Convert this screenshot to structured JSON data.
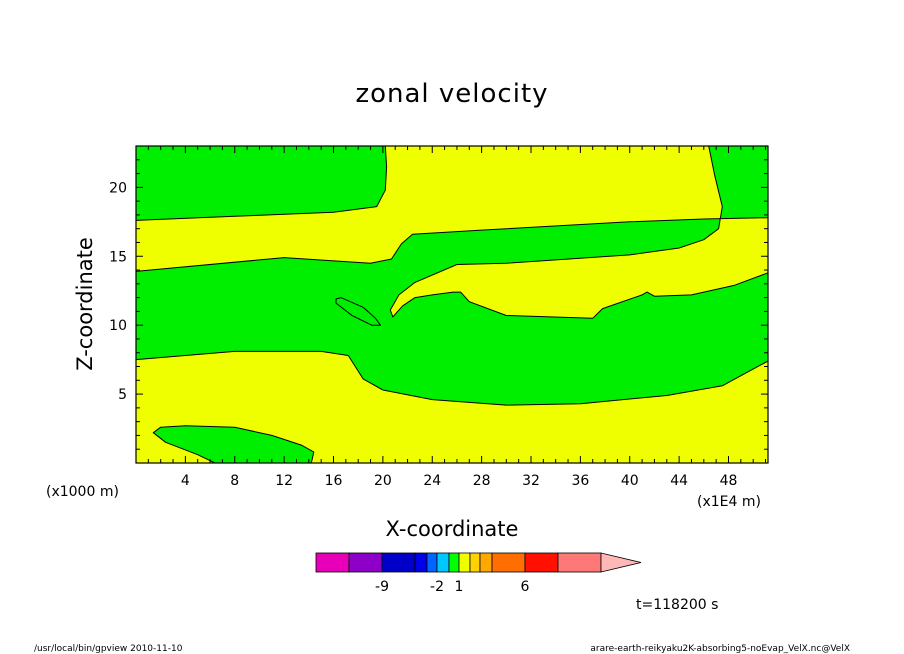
{
  "chart_data": {
    "type": "contour",
    "title": "zonal velocity",
    "xlabel": "X-coordinate",
    "ylabel": "Z-coordinate",
    "x_unit_label": "(x1E4 m)",
    "y_unit_label": "(x1000 m)",
    "xlim": [
      0,
      51.2
    ],
    "ylim": [
      0,
      23
    ],
    "x_ticks": [
      4,
      8,
      12,
      16,
      20,
      24,
      28,
      32,
      36,
      40,
      44,
      48
    ],
    "y_ticks": [
      5,
      10,
      15,
      20
    ],
    "time_label": "t=118200 s",
    "fill_colors": {
      "positive": "#f0ff00",
      "negative": "#00ee00"
    },
    "regions": [
      {
        "value_class": "negative",
        "points": [
          [
            0,
            23
          ],
          [
            20.2,
            23
          ],
          [
            20.3,
            21.5
          ],
          [
            20.2,
            19.8
          ],
          [
            19.5,
            18.6
          ],
          [
            16,
            18.2
          ],
          [
            8,
            17.9
          ],
          [
            0,
            17.6
          ]
        ]
      },
      {
        "value_class": "negative",
        "points": [
          [
            46.4,
            23
          ],
          [
            51.2,
            23
          ],
          [
            51.2,
            17.8
          ],
          [
            46,
            17.7
          ],
          [
            40,
            17.5
          ],
          [
            28,
            16.9
          ],
          [
            22.4,
            16.6
          ],
          [
            21.5,
            15.9
          ],
          [
            20.7,
            14.8
          ],
          [
            19,
            14.5
          ],
          [
            12,
            14.9
          ],
          [
            0,
            13.9
          ],
          [
            0,
            7.5
          ],
          [
            8,
            8.1
          ],
          [
            15,
            8.1
          ],
          [
            17.2,
            7.8
          ],
          [
            18.4,
            6.1
          ],
          [
            20,
            5.3
          ],
          [
            24,
            4.6
          ],
          [
            30,
            4.2
          ],
          [
            36,
            4.3
          ],
          [
            43,
            4.9
          ],
          [
            47.5,
            5.6
          ],
          [
            51.2,
            7.4
          ],
          [
            51.2,
            13.8
          ],
          [
            48.5,
            12.9
          ],
          [
            45,
            12.2
          ],
          [
            42,
            12.1
          ],
          [
            41.4,
            12.4
          ],
          [
            41,
            12.2
          ],
          [
            37.8,
            11.2
          ],
          [
            37,
            10.5
          ],
          [
            30,
            10.7
          ],
          [
            27,
            11.7
          ],
          [
            26.3,
            12.4
          ],
          [
            25.7,
            12.4
          ],
          [
            24,
            12.2
          ],
          [
            22.6,
            12
          ],
          [
            21.6,
            11.4
          ],
          [
            20.8,
            10.6
          ],
          [
            20.6,
            11.1
          ],
          [
            21.3,
            12.2
          ],
          [
            22.6,
            13.1
          ],
          [
            26,
            14.4
          ],
          [
            30,
            14.5
          ],
          [
            40,
            15.1
          ],
          [
            44,
            15.6
          ],
          [
            46,
            16.2
          ],
          [
            47.2,
            17
          ],
          [
            47.5,
            18.6
          ],
          [
            46.9,
            20.8
          ]
        ]
      },
      {
        "value_class": "negative",
        "points": [
          [
            16.2,
            11.9
          ],
          [
            16.6,
            12
          ],
          [
            18.4,
            11.3
          ],
          [
            19.4,
            10.5
          ],
          [
            19.8,
            10
          ],
          [
            19.1,
            10
          ],
          [
            17.5,
            10.7
          ],
          [
            16.2,
            11.6
          ]
        ]
      },
      {
        "value_class": "negative",
        "points": [
          [
            1.4,
            2.2
          ],
          [
            2,
            2.6
          ],
          [
            4,
            2.7
          ],
          [
            8,
            2.6
          ],
          [
            11,
            2
          ],
          [
            13.4,
            1.3
          ],
          [
            14.4,
            0.8
          ],
          [
            14.2,
            0
          ],
          [
            6.4,
            0
          ],
          [
            5,
            0.6
          ],
          [
            2.4,
            1.5
          ]
        ]
      }
    ],
    "colorbar": {
      "colors": [
        "#e800b8",
        "#8c00c8",
        "#0000c8",
        "#0000e8",
        "#0064ff",
        "#00c8ff",
        "#00ff00",
        "#f0ff00",
        "#ffd200",
        "#ffa800",
        "#ff6e00",
        "#ff1000",
        "#ff7878",
        "#ffb8b8"
      ],
      "labels": [
        {
          "text": "-9",
          "index": 1
        },
        {
          "text": "-2",
          "index": 4
        },
        {
          "text": "1",
          "index": 6
        },
        {
          "text": "6",
          "index": 10
        }
      ]
    }
  },
  "footer": {
    "left": "/usr/local/bin/gpview  2010-11-10",
    "right": "arare-earth-reikyaku2K-absorbing5-noEvap_VelX.nc@VelX"
  }
}
